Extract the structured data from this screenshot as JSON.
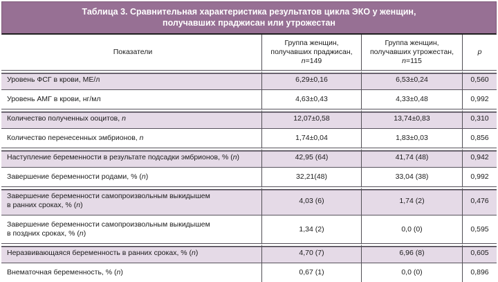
{
  "colors": {
    "title_bg": "#977094",
    "row_alt_bg": "#e5dae7",
    "grid_line": "#57525c",
    "title_text": "#ffffff"
  },
  "title": "Таблица 3. Сравнительная характеристика результатов цикла ЭКО у женщин,\nполучавших праджисан или утрожестан",
  "table": {
    "headers": [
      "Показатели",
      "Группа женщин,\nполучавших праджисан,\nn=149",
      "Группа женщин,\nполучавших утрожестан,\nn=115",
      "p"
    ],
    "rows": [
      {
        "label": "Уровень ФСГ в крови, МЕ/л",
        "pradzhisan": "6,29±0,16",
        "utrozhestan": "6,53±0,24",
        "p": "0,560"
      },
      {
        "label": "Уровень АМГ в крови, нг/мл",
        "pradzhisan": "4,63±0,43",
        "utrozhestan": "4,33±0,48",
        "p": "0,992"
      },
      {
        "label": "Количество полученных ооцитов, n",
        "pradzhisan": "12,07±0,58",
        "utrozhestan": "13,74±0,83",
        "p": "0,310"
      },
      {
        "label": "Количество перенесенных эмбрионов, n",
        "pradzhisan": "1,74±0,04",
        "utrozhestan": "1,83±0,03",
        "p": "0,856"
      },
      {
        "label": "Наступление беременности в результате подсадки эмбрионов, % (n)",
        "pradzhisan": "42,95 (64)",
        "utrozhestan": "41,74 (48)",
        "p": "0,942"
      },
      {
        "label": "Завершение беременности родами, % (n)",
        "pradzhisan": "32,21(48)",
        "utrozhestan": "33,04 (38)",
        "p": "0,992"
      },
      {
        "label": "Завершение беременности самопроизвольным выкидышем\nв ранних сроках, % (n)",
        "pradzhisan": "4,03 (6)",
        "utrozhestan": "1,74 (2)",
        "p": "0,476"
      },
      {
        "label": "Завершение беременности самопроизвольным выкидышем\nв поздних сроках, % (n)",
        "pradzhisan": "1,34 (2)",
        "utrozhestan": "0,0 (0)",
        "p": "0,595"
      },
      {
        "label": "Неразвивающаяся беременность в ранних сроках, % (n)",
        "pradzhisan": "4,70 (7)",
        "utrozhestan": "6,96 (8)",
        "p": "0,605"
      },
      {
        "label": "Внематочная беременность, % (n)",
        "pradzhisan": "0,67 (1)",
        "utrozhestan": "0,0 (0)",
        "p": "0,896"
      }
    ]
  }
}
